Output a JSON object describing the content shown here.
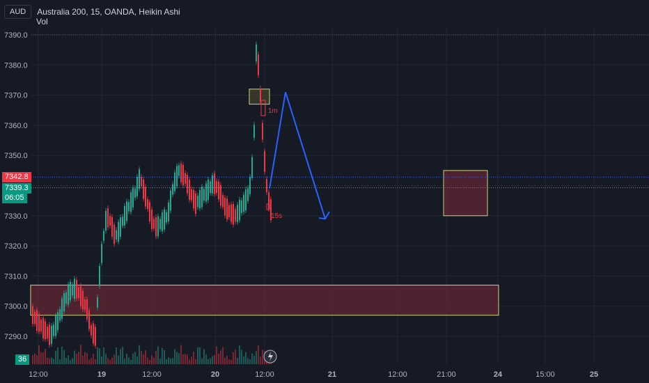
{
  "header": {
    "currency_badge": "AUD",
    "title": "Australia 200, 15, OANDA, Heikin Ashi",
    "volume_label": "Vol"
  },
  "price_axis": {
    "ticks": [
      "7390.0",
      "7380.0",
      "7370.0",
      "7360.0",
      "7350.0",
      "7340.0",
      "7330.0",
      "7320.0",
      "7310.0",
      "7300.0",
      "7290.0"
    ],
    "tick_values": [
      7390,
      7380,
      7370,
      7360,
      7350,
      7340,
      7330,
      7320,
      7310,
      7300,
      7290
    ],
    "marker_red": "7342.8",
    "marker_green": "7339.3",
    "countdown": "06:05",
    "volume_badge": "36"
  },
  "time_axis": {
    "labels": [
      "12:00",
      "19",
      "12:00",
      "20",
      "12:00",
      "21",
      "12:00",
      "21:00",
      "24",
      "15:00",
      "25"
    ],
    "bold": [
      false,
      true,
      false,
      true,
      false,
      true,
      false,
      false,
      true,
      false,
      true
    ]
  },
  "annotations": {
    "label_1m": "1m",
    "label_15s": "15s"
  },
  "colors": {
    "background": "#161a25",
    "up": "#22ab94",
    "down": "#f23645",
    "arrow": "#2962ff",
    "zone_fill": "#5c2532",
    "zone_border": "#c6d77d"
  },
  "chart_data": {
    "type": "candlestick",
    "symbol": "Australia 200",
    "interval": "15",
    "source": "OANDA",
    "style": "Heikin Ashi",
    "ylim": [
      7285,
      7395
    ],
    "current_price": 7339.3,
    "marked_price": 7342.8,
    "grid": true,
    "zones": [
      {
        "from": 7297,
        "to": 7307
      },
      {
        "from": 7330,
        "to": 7345
      },
      {
        "from": 7367,
        "to": 7372
      }
    ],
    "projection_arrow": [
      {
        "price": 7339
      },
      {
        "price": 7371
      },
      {
        "price": 7329
      }
    ]
  }
}
